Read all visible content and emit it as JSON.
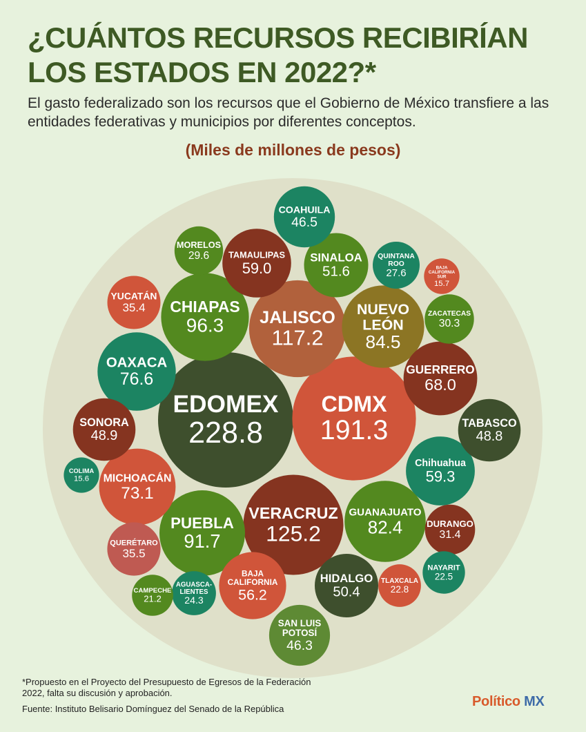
{
  "title_lines": [
    "¿CUÁNTOS RECURSOS RECIBIRÍAN",
    "LOS ESTADOS EN 2022?*"
  ],
  "subtitle": "El gasto federalizado son los recursos que el Gobierno de México transfiere a las entidades federativas y municipios por diferentes conceptos.",
  "unit_label": "(Miles de millones de pesos)",
  "footnote": "*Propuesto en el Proyecto del Presupuesto de Egresos de la Federación 2022, falta su discusión y aprobación.",
  "source": "Fuente: Instituto Belisario Domínguez del Senado de la República",
  "brand": {
    "part1": "Político",
    "part2": "MX"
  },
  "colors": {
    "background": "#e7f2dd",
    "outer_circle": "#dfe0c9",
    "dark_green": "#3e4f2d",
    "orange_red": "#d0553a",
    "dark_red": "#853420",
    "teal": "#1c8462",
    "green": "#53891f",
    "brown_orange": "#b1613c",
    "olive": "#8c7524",
    "light_green": "#5e8a34",
    "rose": "#bf5a52"
  },
  "chart_data": {
    "type": "bubble",
    "title": "¿CUÁNTOS RECURSOS RECIBIRÍAN LOS ESTADOS EN 2022?*",
    "unit": "Miles de millones de pesos",
    "legend": "none",
    "bubbles": [
      {
        "state": "EDOMEX",
        "value": 228.8,
        "label_value": "228.8",
        "color": "dark_green"
      },
      {
        "state": "CDMX",
        "value": 191.3,
        "label_value": "191.3",
        "color": "orange_red"
      },
      {
        "state": "VERACRUZ",
        "value": 125.2,
        "label_value": "125.2",
        "color": "dark_red"
      },
      {
        "state": "JALISCO",
        "value": 117.2,
        "label_value": "117.2",
        "color": "brown_orange"
      },
      {
        "state": "CHIAPAS",
        "value": 96.3,
        "label_value": "96.3",
        "color": "green"
      },
      {
        "state": "PUEBLA",
        "value": 91.7,
        "label_value": "91.7",
        "color": "green"
      },
      {
        "state": "NUEVO LEÓN",
        "value": 84.5,
        "label_value": "84.5",
        "color": "olive"
      },
      {
        "state": "GUANAJUATO",
        "value": 82.4,
        "label_value": "82.4",
        "color": "green"
      },
      {
        "state": "OAXACA",
        "value": 76.6,
        "label_value": "76.6",
        "color": "teal"
      },
      {
        "state": "MICHOACÁN",
        "value": 73.1,
        "label_value": "73.1",
        "color": "orange_red"
      },
      {
        "state": "GUERRERO",
        "value": 68.0,
        "label_value": "68.0",
        "color": "dark_red"
      },
      {
        "state": "CHIHUAHUA",
        "value": 59.3,
        "label_value": "59.3",
        "color": "teal"
      },
      {
        "state": "TAMAULIPAS",
        "value": 59.0,
        "label_value": "59.0",
        "color": "dark_red"
      },
      {
        "state": "BAJA CALIFORNIA",
        "value": 56.2,
        "label_value": "56.2",
        "color": "orange_red"
      },
      {
        "state": "SINALOA",
        "value": 51.6,
        "label_value": "51.6",
        "color": "green"
      },
      {
        "state": "HIDALGO",
        "value": 50.4,
        "label_value": "50.4",
        "color": "dark_green"
      },
      {
        "state": "SONORA",
        "value": 48.9,
        "label_value": "48.9",
        "color": "dark_red"
      },
      {
        "state": "TABASCO",
        "value": 48.8,
        "label_value": "48.8",
        "color": "dark_green"
      },
      {
        "state": "COAHUILA",
        "value": 46.5,
        "label_value": "46.5",
        "color": "teal"
      },
      {
        "state": "SAN LUIS POTOSÍ",
        "value": 46.3,
        "label_value": "46.3",
        "color": "light_green"
      },
      {
        "state": "QUERÉTARO",
        "value": 35.5,
        "label_value": "35.5",
        "color": "rose"
      },
      {
        "state": "YUCATÁN",
        "value": 35.4,
        "label_value": "35.4",
        "color": "orange_red"
      },
      {
        "state": "DURANGO",
        "value": 31.4,
        "label_value": "31.4",
        "color": "dark_red"
      },
      {
        "state": "ZACATECAS",
        "value": 30.3,
        "label_value": "30.3",
        "color": "green"
      },
      {
        "state": "MORELOS",
        "value": 29.6,
        "label_value": "29.6",
        "color": "green"
      },
      {
        "state": "QUINTANA ROO",
        "value": 27.6,
        "label_value": "27.6",
        "color": "teal"
      },
      {
        "state": "AGUASCALIENTES",
        "value": 24.3,
        "label_value": "24.3",
        "color": "teal"
      },
      {
        "state": "TLAXCALA",
        "value": 22.8,
        "label_value": "22.8",
        "color": "orange_red"
      },
      {
        "state": "NAYARIT",
        "value": 22.5,
        "label_value": "22.5",
        "color": "teal"
      },
      {
        "state": "CAMPECHE",
        "value": 21.2,
        "label_value": "21.2",
        "color": "green"
      },
      {
        "state": "BAJA CALIFORNIA SUR",
        "value": 15.7,
        "label_value": "15.7",
        "color": "orange_red"
      },
      {
        "state": "COLIMA",
        "value": 15.6,
        "label_value": "15.6",
        "color": "teal"
      }
    ]
  }
}
